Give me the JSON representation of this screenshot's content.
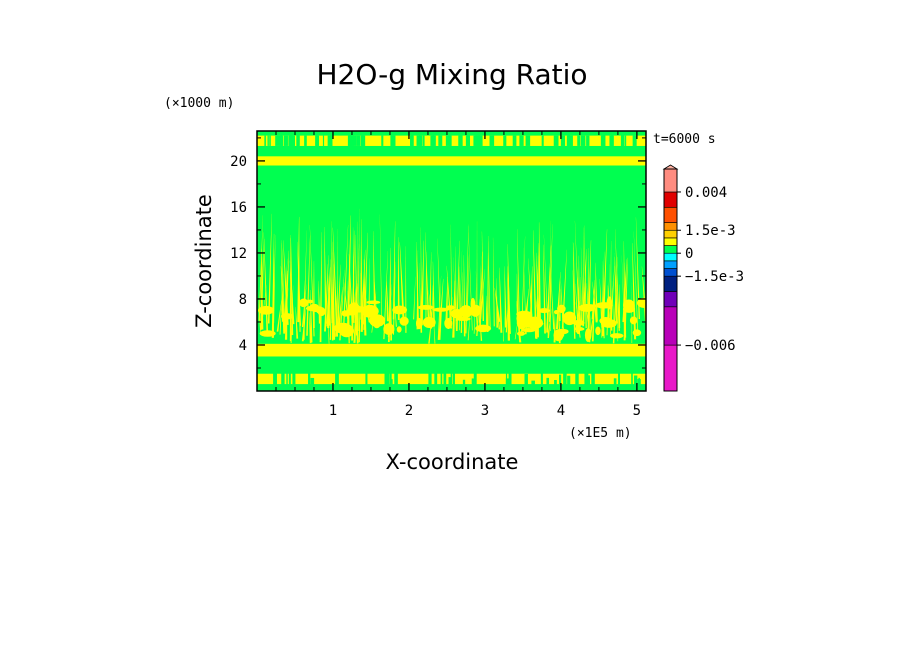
{
  "chart_data": {
    "type": "heatmap",
    "title": "H2O-g Mixing Ratio",
    "xlabel": "X-coordinate",
    "ylabel": "Z-coordinate",
    "x_units": "(×1E5 m)",
    "y_units": "(×1000 m)",
    "time_annotation": "t=6000 s",
    "x_ticks": [
      "1",
      "2",
      "3",
      "4",
      "5"
    ],
    "y_ticks": [
      "4",
      "8",
      "12",
      "16",
      "20"
    ],
    "xlim": [
      0,
      5.12
    ],
    "ylim": [
      0,
      22.6
    ],
    "x_tick_values": [
      1,
      2,
      3,
      4,
      5
    ],
    "y_tick_values": [
      4,
      8,
      12,
      16,
      20
    ],
    "colorbar": {
      "labels": [
        "0.004",
        "1.5e-3",
        "0",
        "−1.5e-3",
        "−0.006"
      ],
      "label_values": [
        0.004,
        0.0015,
        0,
        -0.0015,
        -0.006
      ],
      "levels": [
        -0.009,
        -0.006,
        -0.0035,
        -0.0025,
        -0.0015,
        -0.001,
        -0.0005,
        0,
        0.0005,
        0.001,
        0.0015,
        0.002,
        0.003,
        0.004,
        0.0055
      ],
      "colors": [
        "#e818c8",
        "#b800b8",
        "#7000b8",
        "#002080",
        "#0050d0",
        "#00a0ff",
        "#00ffff",
        "#00ff50",
        "#ffff00",
        "#ffd000",
        "#ff9000",
        "#ff5000",
        "#e00000",
        "#ff8c80",
        "#ffb0a0"
      ]
    },
    "fields": {
      "background_value": "0",
      "dominant_positive_values": [
        "0",
        "5e-4"
      ],
      "notable_layers": [
        {
          "z_range": [
            21.3,
            22.2
          ],
          "pattern": "mostly positive with green gaps"
        },
        {
          "z_range": [
            19.6,
            20.4
          ],
          "pattern": "continuous positive band"
        },
        {
          "z_range": [
            3.0,
            4.1
          ],
          "pattern": "dense positive band"
        },
        {
          "z_range": [
            0,
            2.7
          ],
          "pattern": "alternating positive/near-zero streaks"
        },
        {
          "z_range": [
            5.0,
            14.0
          ],
          "pattern": "vertical positive streaks over near-zero background"
        }
      ]
    }
  }
}
